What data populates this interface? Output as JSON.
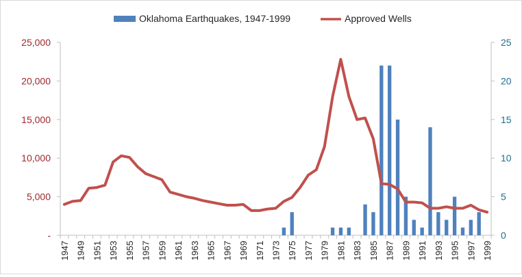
{
  "chart_data": {
    "type": "bar+line",
    "title": "",
    "legend_position": "top",
    "grid": false,
    "x": [
      "1947",
      "1948",
      "1949",
      "1950",
      "1951",
      "1952",
      "1953",
      "1954",
      "1955",
      "1956",
      "1957",
      "1958",
      "1959",
      "1960",
      "1961",
      "1962",
      "1963",
      "1964",
      "1965",
      "1966",
      "1967",
      "1968",
      "1969",
      "1970",
      "1971",
      "1972",
      "1973",
      "1974",
      "1975",
      "1976",
      "1977",
      "1978",
      "1979",
      "1980",
      "1981",
      "1982",
      "1983",
      "1984",
      "1985",
      "1986",
      "1987",
      "1988",
      "1989",
      "1990",
      "1991",
      "1992",
      "1993",
      "1994",
      "1995",
      "1996",
      "1997",
      "1998",
      "1999"
    ],
    "x_tick_labels": [
      "1947",
      "1949",
      "1951",
      "1953",
      "1955",
      "1957",
      "1959",
      "1961",
      "1963",
      "1965",
      "1967",
      "1969",
      "1971",
      "1973",
      "1975",
      "1977",
      "1979",
      "1981",
      "1983",
      "1985",
      "1987",
      "1989",
      "1991",
      "1993",
      "1995",
      "1997",
      "1999"
    ],
    "y_left": {
      "ylim": [
        0,
        25000
      ],
      "ticks": [
        0,
        5000,
        10000,
        15000,
        20000,
        25000
      ],
      "tick_labels": [
        "-",
        "5,000",
        "10,000",
        "15,000",
        "20,000",
        "25,000"
      ],
      "color": "#a0282b"
    },
    "y_right": {
      "ylim": [
        0,
        25
      ],
      "ticks": [
        0,
        5,
        10,
        15,
        20,
        25
      ],
      "tick_labels": [
        "0",
        "5",
        "10",
        "15",
        "20",
        "25"
      ],
      "color": "#1f6f8b"
    },
    "series": [
      {
        "name": "Oklahoma Earthquakes, 1947-1999",
        "type": "bar",
        "axis": "right",
        "color": "#4f81bd",
        "values": [
          0,
          0,
          0,
          0,
          0,
          0,
          0,
          0,
          0,
          0,
          0,
          0,
          0,
          0,
          0,
          0,
          0,
          0,
          0,
          0,
          0,
          0,
          0,
          0,
          0,
          0,
          0,
          1,
          3,
          0,
          0,
          0,
          0,
          1,
          1,
          1,
          0,
          4,
          3,
          22,
          22,
          15,
          5,
          2,
          1,
          14,
          3,
          2,
          5,
          1,
          2,
          3,
          0
        ]
      },
      {
        "name": "Approved Wells",
        "type": "line",
        "axis": "left",
        "color": "#c0504d",
        "values": [
          4000,
          4400,
          4500,
          6100,
          6200,
          6500,
          9500,
          10300,
          10100,
          8900,
          8000,
          7600,
          7200,
          5600,
          5300,
          5000,
          4800,
          4500,
          4300,
          4100,
          3900,
          3900,
          4000,
          3200,
          3200,
          3400,
          3500,
          4400,
          4900,
          6200,
          7800,
          8500,
          11500,
          18000,
          22800,
          18000,
          15000,
          15200,
          12500,
          6700,
          6600,
          6000,
          4300,
          4300,
          4200,
          3500,
          3500,
          3700,
          3500,
          3500,
          3900,
          3300,
          3000
        ]
      }
    ]
  }
}
